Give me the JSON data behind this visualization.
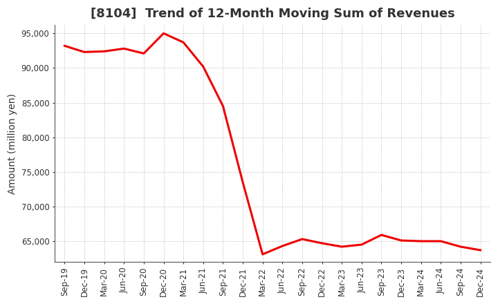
{
  "title": "[8104]  Trend of 12-Month Moving Sum of Revenues",
  "ylabel": "Amount (million yen)",
  "background_color": "#ffffff",
  "plot_bg_color": "#ffffff",
  "line_color": "#ee0000",
  "line_width": 2.2,
  "x_labels": [
    "Sep-19",
    "Dec-19",
    "Mar-20",
    "Jun-20",
    "Sep-20",
    "Dec-20",
    "Mar-21",
    "Jun-21",
    "Sep-21",
    "Dec-21",
    "Mar-22",
    "Jun-22",
    "Sep-22",
    "Dec-22",
    "Mar-23",
    "Jun-23",
    "Sep-23",
    "Dec-23",
    "Mar-24",
    "Jun-24",
    "Sep-24",
    "Dec-24"
  ],
  "values": [
    93200,
    92300,
    92400,
    92800,
    92100,
    95000,
    93700,
    90200,
    84500,
    73500,
    63100,
    64300,
    65300,
    64700,
    64200,
    64500,
    65900,
    65100,
    65000,
    65000,
    64200,
    63700
  ],
  "ylim_min": 62000,
  "ylim_max": 96200,
  "yticks": [
    65000,
    70000,
    75000,
    80000,
    85000,
    90000,
    95000
  ],
  "title_fontsize": 13,
  "tick_fontsize": 8.5,
  "ylabel_fontsize": 10,
  "grid_color": "#aaaaaa",
  "grid_linewidth": 0.6,
  "text_color": "#333333"
}
